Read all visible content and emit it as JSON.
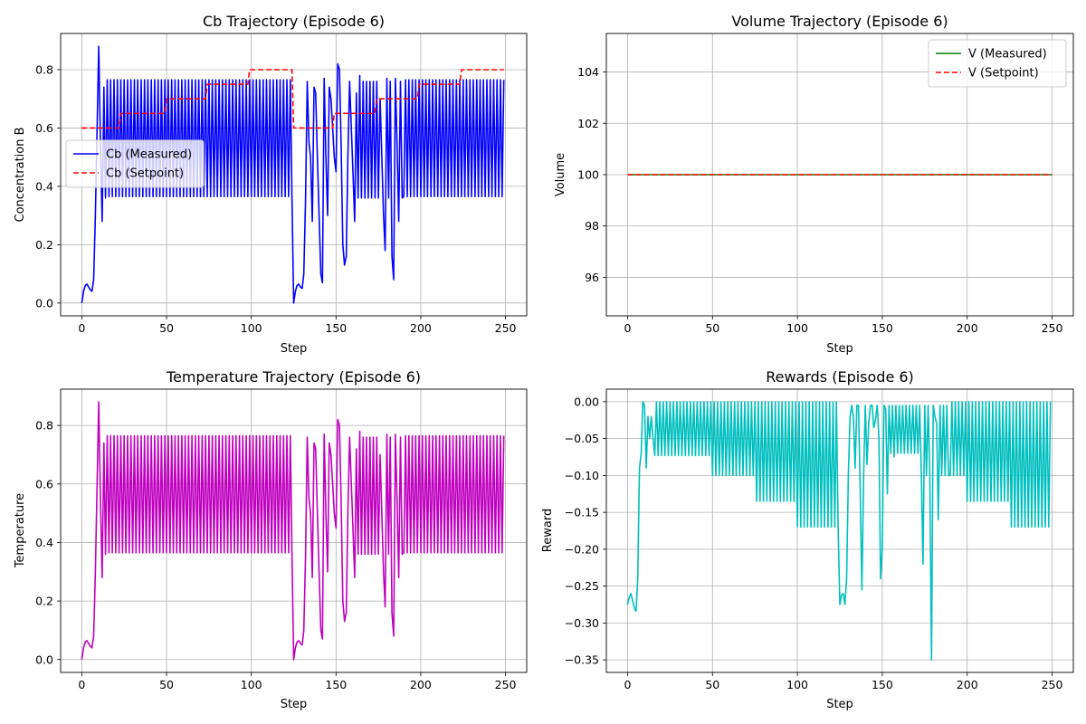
{
  "colors": {
    "cb_measured": "#0000ff",
    "setpoint": "#ff0000",
    "v_measured": "#008000",
    "temperature": "#bf00bf",
    "reward": "#00bfbf",
    "grid": "#b0b0b0"
  },
  "chart_data": [
    {
      "id": "cb",
      "type": "line",
      "title": "Cb Trajectory (Episode 6)",
      "xlabel": "Step",
      "ylabel": "Concentration B",
      "xlim": [
        -12.5,
        262.5
      ],
      "ylim": [
        -0.044,
        0.924
      ],
      "xticks": [
        0,
        50,
        100,
        150,
        200,
        250
      ],
      "yticks": [
        0.0,
        0.2,
        0.4,
        0.6,
        0.8
      ],
      "ytick_labels": [
        "0.0",
        "0.2",
        "0.4",
        "0.6",
        "0.8"
      ],
      "grid": true,
      "legend": "center-left",
      "series": [
        {
          "name": "Cb (Measured)",
          "color_key": "cb_measured",
          "style": "solid",
          "generator": "trajectory"
        },
        {
          "name": "Cb (Setpoint)",
          "color_key": "setpoint",
          "style": "dashed",
          "x": [
            0,
            22,
            23,
            37,
            38,
            49,
            50,
            73,
            74,
            98,
            99,
            124,
            125,
            148,
            149,
            173,
            174,
            198,
            199,
            223,
            224,
            249
          ],
          "y": [
            0.6,
            0.6,
            0.65,
            0.65,
            0.65,
            0.65,
            0.7,
            0.7,
            0.75,
            0.75,
            0.8,
            0.8,
            0.6,
            0.6,
            0.65,
            0.65,
            0.7,
            0.7,
            0.75,
            0.75,
            0.8,
            0.8
          ]
        }
      ]
    },
    {
      "id": "vol",
      "type": "line",
      "title": "Volume Trajectory (Episode 6)",
      "xlabel": "Step",
      "ylabel": "Volume",
      "xlim": [
        -12.5,
        262.5
      ],
      "ylim": [
        94.5,
        105.5
      ],
      "xticks": [
        0,
        50,
        100,
        150,
        200,
        250
      ],
      "yticks": [
        96,
        98,
        100,
        102,
        104
      ],
      "ytick_labels": [
        "96",
        "98",
        "100",
        "102",
        "104"
      ],
      "grid": true,
      "legend": "top-right",
      "series": [
        {
          "name": "V (Measured)",
          "color_key": "v_measured",
          "style": "solid",
          "x": [
            0,
            250
          ],
          "y": [
            100,
            100
          ]
        },
        {
          "name": "V (Setpoint)",
          "color_key": "setpoint",
          "style": "dashed",
          "x": [
            0,
            250
          ],
          "y": [
            100,
            100
          ]
        }
      ]
    },
    {
      "id": "temp",
      "type": "line",
      "title": "Temperature Trajectory (Episode 6)",
      "xlabel": "Step",
      "ylabel": "Temperature",
      "xlim": [
        -12.5,
        262.5
      ],
      "ylim": [
        -0.044,
        0.924
      ],
      "xticks": [
        0,
        50,
        100,
        150,
        200,
        250
      ],
      "yticks": [
        0.0,
        0.2,
        0.4,
        0.6,
        0.8
      ],
      "ytick_labels": [
        "0.0",
        "0.2",
        "0.4",
        "0.6",
        "0.8"
      ],
      "grid": true,
      "legend": "none",
      "series": [
        {
          "name": "",
          "color_key": "temperature",
          "style": "solid",
          "generator": "trajectory"
        }
      ]
    },
    {
      "id": "rew",
      "type": "line",
      "title": "Rewards (Episode 6)",
      "xlabel": "Step",
      "ylabel": "Reward",
      "xlim": [
        -12.5,
        262.5
      ],
      "ylim": [
        -0.367,
        0.017
      ],
      "xticks": [
        0,
        50,
        100,
        150,
        200,
        250
      ],
      "yticks": [
        0.0,
        -0.05,
        -0.1,
        -0.15,
        -0.2,
        -0.25,
        -0.3,
        -0.35
      ],
      "ytick_labels": [
        "0.00",
        "−0.05",
        "−0.10",
        "−0.15",
        "−0.20",
        "−0.25",
        "−0.30",
        "−0.35"
      ],
      "grid": true,
      "legend": "none",
      "series": [
        {
          "name": "",
          "color_key": "reward",
          "style": "solid",
          "generator": "reward"
        }
      ]
    }
  ]
}
